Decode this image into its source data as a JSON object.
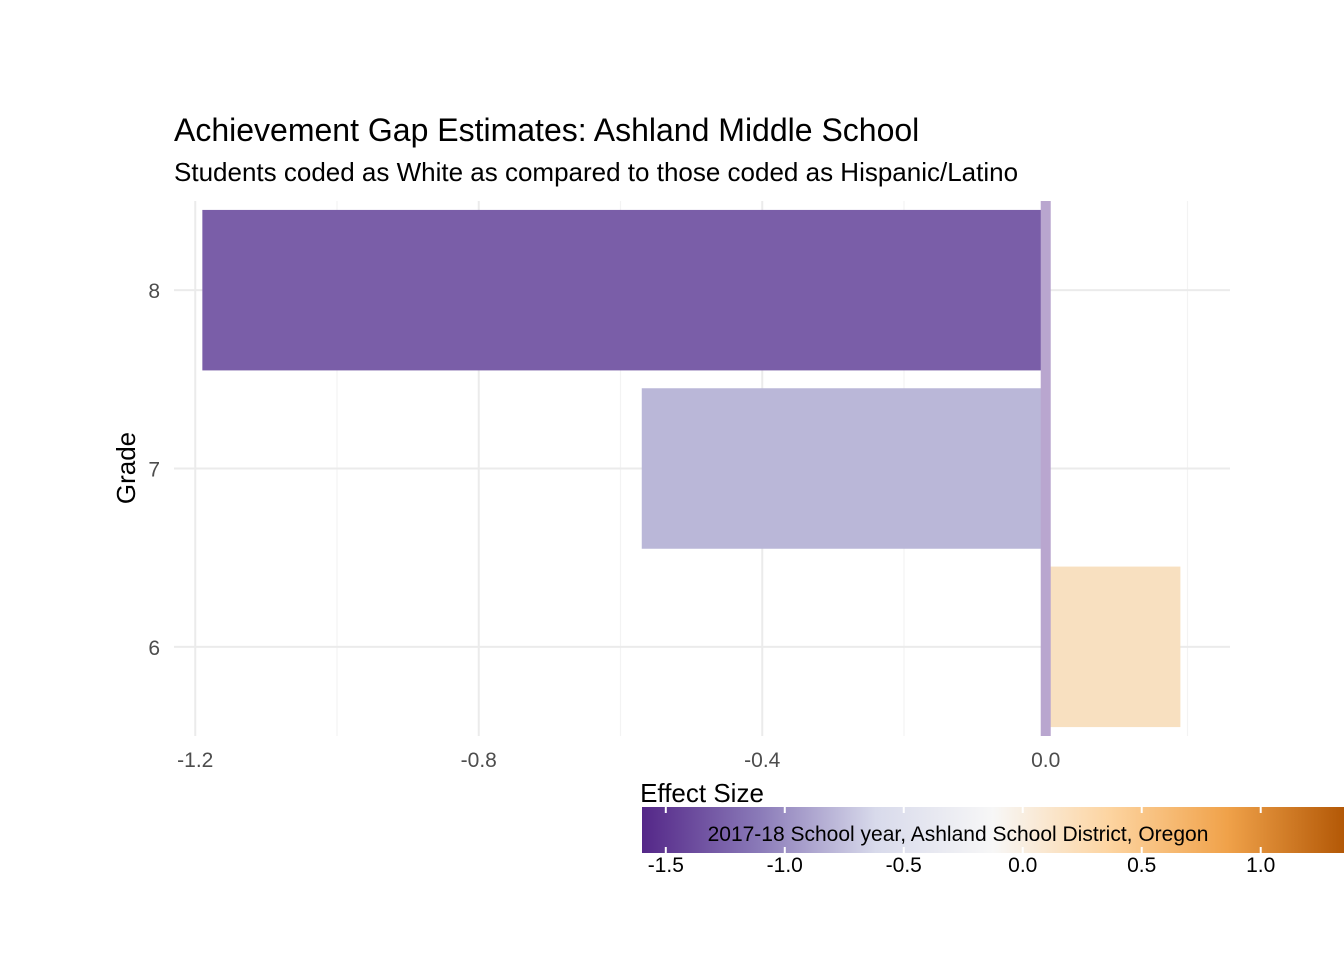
{
  "chart_data": {
    "type": "bar",
    "orientation": "horizontal",
    "title": "Achievement Gap Estimates: Ashland Middle School",
    "subtitle": "Students coded as White as compared to those coded as Hispanic/Latino",
    "xlabel": "Effect Size",
    "ylabel": "Grade",
    "categories": [
      "8",
      "7",
      "6"
    ],
    "values": [
      -1.19,
      -0.57,
      0.19
    ],
    "bar_colors": [
      "#7a5ea8",
      "#bab7d8",
      "#f8e0c0"
    ],
    "xlim": [
      -1.23,
      0.26
    ],
    "x_ticks": [
      "-1.2",
      "-0.8",
      "-0.4",
      "0.0"
    ],
    "x_tick_values": [
      -1.2,
      -0.8,
      -0.4,
      0.0
    ],
    "reference_line": {
      "value": 0.0,
      "color": "#b9a6cf"
    },
    "grid": true,
    "legend": {
      "position": "bottom",
      "caption": "2017-18 School year, Ashland School District, Oregon",
      "scale_min": -1.6,
      "scale_max": 1.35,
      "ticks": [
        "-1.5",
        "-1.0",
        "-0.5",
        "0.0",
        "0.5",
        "1.0"
      ],
      "tick_values": [
        -1.5,
        -1.0,
        -0.5,
        0.0,
        0.5,
        1.0
      ],
      "gradient_colors": [
        "#542788",
        "#8a7ab8",
        "#d8daeb",
        "#f7f7f7",
        "#fdd4a0",
        "#f0a24a",
        "#b35806"
      ]
    }
  }
}
